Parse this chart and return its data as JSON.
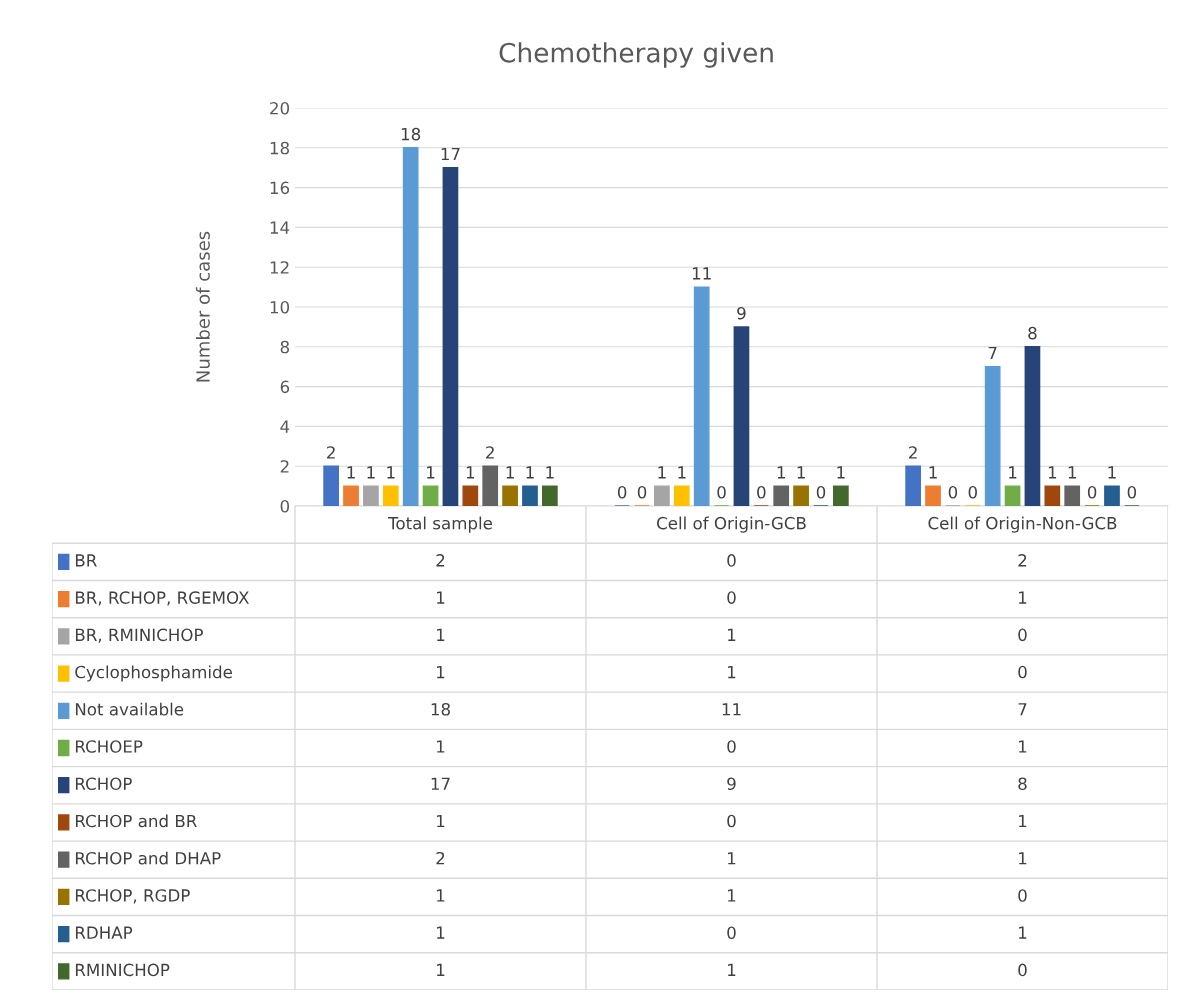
{
  "chart_data": [
    {
      "type": "bar",
      "title": "Chemotherapy given",
      "ylabel": "Number of cases",
      "categories": [
        "Total sample",
        "Cell of Origin-GCB",
        "Cell of Origin-Non-GCB"
      ],
      "ylim": [
        0,
        20
      ],
      "yticks": [
        0,
        2,
        4,
        6,
        8,
        10,
        12,
        14,
        16,
        18,
        20
      ],
      "grid": "y",
      "legend": "bottom",
      "series": [
        {
          "name": "BR",
          "color": "#4472c4",
          "values": [
            2,
            0,
            2
          ],
          "value_labels": [
            "2",
            "0",
            "2"
          ]
        },
        {
          "name": "BR, RCHOP, RGEMOX",
          "color": "#ed7d31",
          "values": [
            1,
            0,
            1
          ],
          "value_labels": [
            "1",
            "0",
            "1"
          ]
        },
        {
          "name": "BR, RMINICHOP",
          "color": "#a5a5a5",
          "values": [
            1,
            1,
            0
          ],
          "value_labels": [
            "1",
            "1",
            "0"
          ]
        },
        {
          "name": "Cyclophosphamide",
          "color": "#ffc000",
          "values": [
            1,
            1,
            0
          ],
          "value_labels": [
            "1",
            "1",
            "0"
          ]
        },
        {
          "name": "Not available",
          "color": "#5b9bd5",
          "values": [
            18,
            11,
            7
          ],
          "value_labels": [
            "18",
            "11",
            "7"
          ]
        },
        {
          "name": "RCHOEP",
          "color": "#70ad47",
          "values": [
            1,
            0,
            1
          ],
          "value_labels": [
            "1",
            "0",
            "1"
          ]
        },
        {
          "name": "RCHOP",
          "color": "#264478",
          "values": [
            17,
            9,
            8
          ],
          "value_labels": [
            "17",
            "9",
            "8"
          ]
        },
        {
          "name": "RCHOP and BR",
          "color": "#9e480e",
          "values": [
            1,
            0,
            1
          ],
          "value_labels": [
            "1",
            "0",
            "1"
          ]
        },
        {
          "name": "RCHOP and DHAP",
          "color": "#636363",
          "values": [
            2,
            1,
            1
          ],
          "value_labels": [
            "2",
            "1",
            "1"
          ]
        },
        {
          "name": "RCHOP, RGDP",
          "color": "#997300",
          "values": [
            1,
            1,
            0
          ],
          "value_labels": [
            "1",
            "1",
            "0"
          ]
        },
        {
          "name": "RDHAP",
          "color": "#255e91",
          "values": [
            1,
            0,
            1
          ],
          "value_labels": [
            "1",
            "0",
            "1"
          ]
        },
        {
          "name": "RMINICHOP",
          "color": "#43682b",
          "values": [
            1,
            1,
            0
          ],
          "value_labels": [
            "1",
            "1",
            "0"
          ]
        }
      ]
    },
    {
      "type": "other",
      "cell_labels": [
        [
          "2",
          "0",
          "2"
        ],
        [
          "1",
          "0",
          "1"
        ],
        [
          "1",
          "1",
          "0"
        ],
        [
          "1",
          "1",
          "0"
        ],
        [
          "18",
          "11",
          "7"
        ],
        [
          "1",
          "0",
          "1"
        ],
        [
          "17",
          "9",
          "8"
        ],
        [
          "1",
          "0",
          "1"
        ],
        [
          "2",
          "1",
          "1"
        ],
        [
          "1",
          "1",
          "0"
        ],
        [
          "1",
          "0",
          "1"
        ],
        [
          "1",
          "1",
          "0"
        ]
      ]
    }
  ]
}
